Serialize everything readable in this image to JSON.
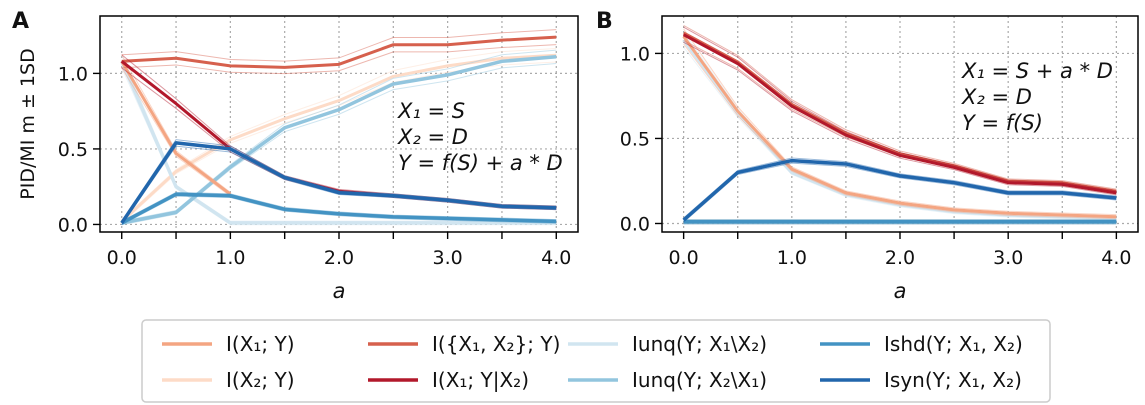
{
  "chart_data": [
    {
      "panel": "A",
      "type": "line",
      "xlabel": "a",
      "ylabel": "PID/MI m ± 1SD",
      "xlim": [
        -0.2,
        4.2
      ],
      "ylim": [
        -0.05,
        1.38
      ],
      "xticks": [
        0,
        1,
        2,
        3,
        4
      ],
      "xtick_labels": [
        "0.0",
        "1.0",
        "2.0",
        "3.0",
        "4.0"
      ],
      "yticks": [
        0,
        0.5,
        1.0
      ],
      "ytick_labels": [
        "0.0",
        "0.5",
        "1.0"
      ],
      "grid": "dotted",
      "annotation": [
        "X₁ = S",
        "X₂ = D",
        "Y = f(S) + a * D"
      ],
      "x": [
        0,
        0.5,
        1,
        1.5,
        2,
        2.5,
        3,
        3.5,
        4
      ],
      "series": [
        {
          "key": "I_X1_Y",
          "color": "#f4a582",
          "values": [
            1.08,
            0.47,
            0.2,
            null,
            null,
            null,
            null,
            null,
            null
          ]
        },
        {
          "key": "I_X2_Y",
          "color": "#fddbc7",
          "values": [
            0.02,
            0.35,
            0.56,
            0.7,
            0.82,
            0.98,
            1.05,
            1.1,
            1.12
          ]
        },
        {
          "key": "I_X1X2_Y",
          "color": "#d6604d",
          "values": [
            1.08,
            1.1,
            1.05,
            1.04,
            1.06,
            1.19,
            1.19,
            1.22,
            1.24
          ]
        },
        {
          "key": "I_X1_Y_given_X2",
          "color": "#b2182b",
          "values": [
            1.08,
            0.8,
            0.5,
            0.31,
            0.22,
            0.19,
            0.16,
            0.12,
            0.11
          ]
        },
        {
          "key": "Iunq_Y_X1",
          "color": "#d1e5f0",
          "values": [
            1.08,
            0.25,
            0.01,
            0.01,
            0.01,
            0.01,
            0.01,
            0.01,
            0.01
          ]
        },
        {
          "key": "Iunq_Y_X2",
          "color": "#92c5de",
          "values": [
            0.01,
            0.08,
            0.38,
            0.64,
            0.76,
            0.93,
            0.99,
            1.08,
            1.11
          ]
        },
        {
          "key": "Ishd",
          "color": "#4393c3",
          "values": [
            0.01,
            0.2,
            0.19,
            0.1,
            0.07,
            0.05,
            0.04,
            0.03,
            0.02
          ]
        },
        {
          "key": "Isyn",
          "color": "#2166ac",
          "values": [
            0.01,
            0.54,
            0.5,
            0.31,
            0.21,
            0.19,
            0.16,
            0.12,
            0.11
          ]
        }
      ]
    },
    {
      "panel": "B",
      "type": "line",
      "xlabel": "a",
      "ylabel": "",
      "xlim": [
        -0.2,
        4.2
      ],
      "ylim": [
        -0.05,
        1.22
      ],
      "xticks": [
        0,
        1,
        2,
        3,
        4
      ],
      "xtick_labels": [
        "0.0",
        "1.0",
        "2.0",
        "3.0",
        "4.0"
      ],
      "yticks": [
        0,
        0.5,
        1.0
      ],
      "ytick_labels": [
        "0.0",
        "0.5",
        "1.0"
      ],
      "grid": "dotted",
      "annotation": [
        "X₁ = S + a * D",
        "X₂ = D",
        "Y = f(S)"
      ],
      "x": [
        0,
        0.5,
        1,
        1.5,
        2,
        2.5,
        3,
        3.5,
        4
      ],
      "series": [
        {
          "key": "I_X1_Y",
          "color": "#f4a582",
          "values": [
            1.1,
            0.66,
            0.32,
            0.18,
            0.12,
            0.08,
            0.06,
            0.05,
            0.04
          ]
        },
        {
          "key": "I_X2_Y",
          "color": "#fddbc7",
          "values": [
            0.01,
            0.01,
            0.01,
            0.01,
            0.01,
            0.01,
            0.01,
            0.01,
            0.01
          ]
        },
        {
          "key": "I_X1X2_Y",
          "color": "#d6604d",
          "values": [
            1.12,
            0.95,
            0.7,
            0.53,
            0.41,
            0.34,
            0.25,
            0.24,
            0.19
          ]
        },
        {
          "key": "I_X1_Y_given_X2",
          "color": "#b2182b",
          "values": [
            1.11,
            0.94,
            0.69,
            0.52,
            0.4,
            0.33,
            0.24,
            0.23,
            0.18
          ]
        },
        {
          "key": "Iunq_Y_X1",
          "color": "#d1e5f0",
          "values": [
            1.08,
            0.65,
            0.3,
            0.17,
            0.11,
            0.07,
            0.05,
            0.04,
            0.03
          ]
        },
        {
          "key": "Iunq_Y_X2",
          "color": "#92c5de",
          "values": [
            0.01,
            0.01,
            0.01,
            0.01,
            0.01,
            0.01,
            0.01,
            0.01,
            0.01
          ]
        },
        {
          "key": "Ishd",
          "color": "#4393c3",
          "values": [
            0.01,
            0.01,
            0.01,
            0.01,
            0.01,
            0.01,
            0.01,
            0.01,
            0.01
          ]
        },
        {
          "key": "Isyn",
          "color": "#2166ac",
          "values": [
            0.02,
            0.3,
            0.37,
            0.35,
            0.28,
            0.24,
            0.18,
            0.18,
            0.15
          ]
        }
      ]
    }
  ],
  "legend": {
    "placement": "bottom-center",
    "entries": [
      {
        "key": "I_X1_Y",
        "color": "#f4a582",
        "label": "I(X₁; Y)"
      },
      {
        "key": "I_X2_Y",
        "color": "#fddbc7",
        "label": "I(X₂; Y)"
      },
      {
        "key": "I_X1X2_Y",
        "color": "#d6604d",
        "label": "I({X₁, X₂}; Y)"
      },
      {
        "key": "I_X1_Y_given_X2",
        "color": "#b2182b",
        "label": "I(X₁; Y|X₂)"
      },
      {
        "key": "Iunq_Y_X1",
        "color": "#d1e5f0",
        "label": "Iunq(Y; X₁\\X₂)"
      },
      {
        "key": "Iunq_Y_X2",
        "color": "#92c5de",
        "label": "Iunq(Y; X₂\\X₁)"
      },
      {
        "key": "Ishd",
        "color": "#4393c3",
        "label": "Ishd(Y; X₁, X₂)"
      },
      {
        "key": "Isyn",
        "color": "#2166ac",
        "label": "Isyn(Y; X₁, X₂)"
      }
    ]
  }
}
